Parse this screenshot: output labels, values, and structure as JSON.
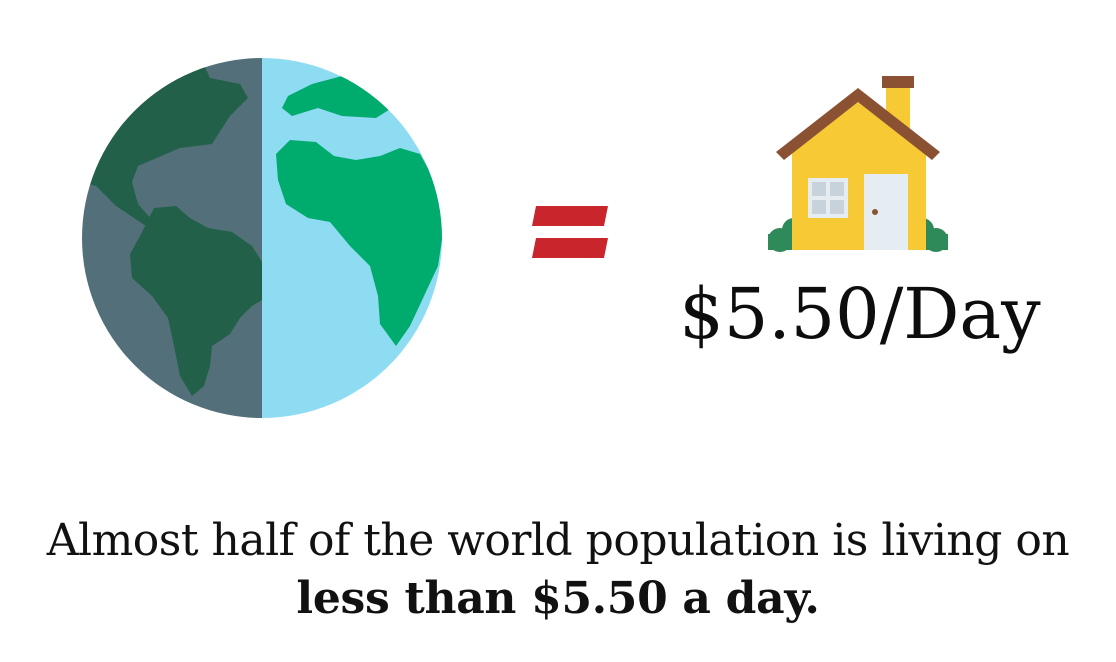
{
  "illustration": {
    "left_icon": "globe-icon",
    "middle_icon": "equals-icon",
    "right_icon": "house-icon"
  },
  "price_label": "$5.50/Day",
  "caption": {
    "line1": "Almost half of the world population is living on",
    "line2": "less than $5.50 a day."
  },
  "colors": {
    "globe_dark_ocean": "#53707a",
    "globe_dark_land": "#23604a",
    "globe_light_ocean": "#8edcf2",
    "globe_light_land": "#00ab6e",
    "equals": "#c8252c",
    "house_wall": "#f7c935",
    "house_roof": "#8a5233",
    "house_door": "#e6edf2",
    "bush": "#2f8a5a"
  }
}
